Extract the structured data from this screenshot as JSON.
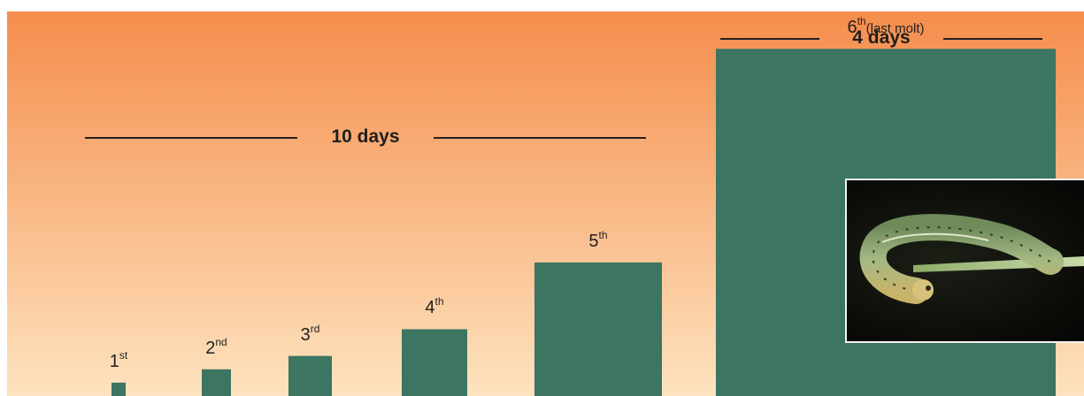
{
  "chart_data": {
    "type": "bar",
    "title": "",
    "xlabel": "",
    "ylabel": "",
    "categories": [
      {
        "ordinal": "1",
        "suffix": "st",
        "note": ""
      },
      {
        "ordinal": "2",
        "suffix": "nd",
        "note": ""
      },
      {
        "ordinal": "3",
        "suffix": "rd",
        "note": ""
      },
      {
        "ordinal": "4",
        "suffix": "th",
        "note": ""
      },
      {
        "ordinal": "5",
        "suffix": "th",
        "note": ""
      },
      {
        "ordinal": "6",
        "suffix": "th",
        "note": "(last molt)"
      }
    ],
    "values": [
      1,
      2,
      3,
      5,
      10,
      26
    ],
    "ylim": [
      0,
      28
    ],
    "spans": [
      {
        "label": "10 days",
        "from": 0,
        "to": 4
      },
      {
        "label": "4 days",
        "from": 5,
        "to": 5
      }
    ],
    "grid": false,
    "legend": "none"
  },
  "colors": {
    "background_top": "#f58d4c",
    "background_bottom": "#fde3bf",
    "bar": "#3c7562",
    "text": "#1f1f1f"
  },
  "photo": {
    "icon": "caterpillar-photo"
  }
}
